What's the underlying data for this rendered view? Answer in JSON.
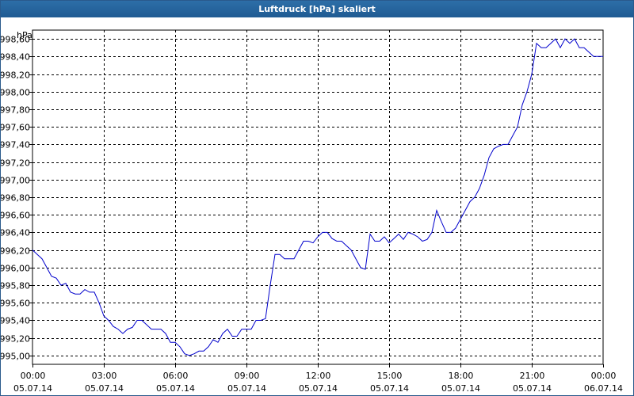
{
  "window": {
    "title": "Luftdruck [hPa] skaliert"
  },
  "colors": {
    "titlebar": "#1f5b93",
    "line": "#0000cc",
    "grid": "#000000",
    "background": "#ffffff"
  },
  "chart_data": {
    "type": "line",
    "title": "Luftdruck [hPa] skaliert",
    "unit_label": "hPa",
    "ylabel": "hPa",
    "xlabel": "",
    "grid": true,
    "ylim": [
      994.9,
      998.7
    ],
    "xlim_hours": [
      0,
      24
    ],
    "y_ticks": [
      "995,00",
      "995,20",
      "995,40",
      "995,60",
      "995,80",
      "996,00",
      "996,20",
      "996,40",
      "996,60",
      "996,80",
      "997,00",
      "997,20",
      "997,40",
      "997,60",
      "997,80",
      "998,00",
      "998,20",
      "998,40",
      "998,60"
    ],
    "x_ticks": [
      {
        "time": "00:00",
        "date": "05.07.14"
      },
      {
        "time": "03:00",
        "date": "05.07.14"
      },
      {
        "time": "06:00",
        "date": "05.07.14"
      },
      {
        "time": "09:00",
        "date": "05.07.14"
      },
      {
        "time": "12:00",
        "date": "05.07.14"
      },
      {
        "time": "15:00",
        "date": "05.07.14"
      },
      {
        "time": "18:00",
        "date": "05.07.14"
      },
      {
        "time": "21:00",
        "date": "05.07.14"
      },
      {
        "time": "00:00",
        "date": "06.07.14"
      }
    ],
    "series": [
      {
        "x": [
          0,
          0.2,
          0.4,
          0.6,
          0.8,
          1.0,
          1.2,
          1.4,
          1.6,
          1.8,
          2.0,
          2.2,
          2.4,
          2.6,
          2.8,
          3.0,
          3.2,
          3.4,
          3.6,
          3.8,
          4.0,
          4.2,
          4.4,
          4.6,
          4.8,
          5.0,
          5.2,
          5.4,
          5.6,
          5.8,
          6.0,
          6.2,
          6.4,
          6.6,
          6.8,
          7.0,
          7.2,
          7.4,
          7.6,
          7.8,
          8.0,
          8.2,
          8.4,
          8.6,
          8.8,
          9.0,
          9.2,
          9.4,
          9.6,
          9.8,
          10.0,
          10.2,
          10.4,
          10.6,
          10.8,
          11.0,
          11.2,
          11.4,
          11.6,
          11.8,
          12.0,
          12.2,
          12.4,
          12.6,
          12.8,
          13.0,
          13.2,
          13.4,
          13.6,
          13.8,
          14.0,
          14.2,
          14.4,
          14.6,
          14.8,
          15.0,
          15.2,
          15.4,
          15.6,
          15.8,
          16.0,
          16.2,
          16.4,
          16.6,
          16.8,
          17.0,
          17.2,
          17.4,
          17.6,
          17.8,
          18.0,
          18.2,
          18.4,
          18.6,
          18.8,
          19.0,
          19.2,
          19.4,
          19.6,
          19.8,
          20.0,
          20.2,
          20.4,
          20.6,
          20.8,
          21.0,
          21.2,
          21.4,
          21.6,
          21.8,
          22.0,
          22.2,
          22.4,
          22.6,
          22.8,
          23.0,
          23.2,
          23.4,
          23.6,
          23.8,
          24.0
        ],
        "y": [
          996.2,
          996.15,
          996.1,
          996.0,
          995.9,
          995.88,
          995.8,
          995.82,
          995.72,
          995.7,
          995.7,
          995.75,
          995.72,
          995.72,
          995.6,
          995.45,
          995.4,
          995.33,
          995.3,
          995.25,
          995.3,
          995.32,
          995.4,
          995.4,
          995.35,
          995.3,
          995.3,
          995.3,
          995.25,
          995.15,
          995.15,
          995.1,
          995.02,
          995.0,
          995.02,
          995.05,
          995.05,
          995.1,
          995.18,
          995.15,
          995.25,
          995.3,
          995.22,
          995.22,
          995.3,
          995.3,
          995.3,
          995.4,
          995.4,
          995.42,
          995.8,
          996.15,
          996.15,
          996.1,
          996.1,
          996.1,
          996.2,
          996.3,
          996.3,
          996.28,
          996.35,
          996.4,
          996.4,
          996.33,
          996.3,
          996.3,
          996.25,
          996.2,
          996.1,
          996.0,
          995.98,
          996.38,
          996.3,
          996.3,
          996.35,
          996.28,
          996.33,
          996.38,
          996.32,
          996.4,
          996.38,
          996.35,
          996.3,
          996.32,
          996.4,
          996.65,
          996.52,
          996.4,
          996.4,
          996.45,
          996.55,
          996.65,
          996.75,
          996.8,
          996.9,
          997.05,
          997.25,
          997.35,
          997.38,
          997.4,
          997.4,
          997.5,
          997.6,
          997.85,
          998.0,
          998.2,
          998.55,
          998.5,
          998.5,
          998.55,
          998.6,
          998.5,
          998.6,
          998.55,
          998.6,
          998.5,
          998.5,
          998.45,
          998.4,
          998.4,
          998.4
        ]
      }
    ]
  }
}
